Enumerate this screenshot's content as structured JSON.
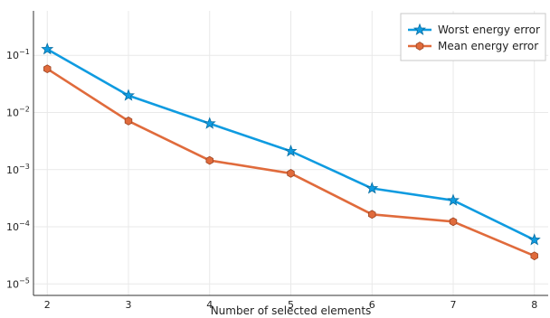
{
  "chart_data": {
    "type": "line",
    "xlabel": "Number of selected elements",
    "ylabel": "",
    "yscale": "log",
    "x": [
      2,
      3,
      4,
      5,
      6,
      7,
      8
    ],
    "xlim": [
      1.83,
      8.17
    ],
    "ylim": [
      6.3e-06,
      0.6
    ],
    "x_ticks": [
      2,
      3,
      4,
      5,
      6,
      7,
      8
    ],
    "y_ticks": [
      {
        "exp": -1,
        "base": "10",
        "sup": "−1"
      },
      {
        "exp": -2,
        "base": "10",
        "sup": "−2"
      },
      {
        "exp": -3,
        "base": "10",
        "sup": "−3"
      },
      {
        "exp": -4,
        "base": "10",
        "sup": "−4"
      },
      {
        "exp": -5,
        "base": "10",
        "sup": "−5"
      }
    ],
    "grid": true,
    "legend_position": "top-right",
    "series": [
      {
        "name": "Worst energy error",
        "color": "#0f9be0",
        "marker": "star",
        "values": [
          0.128,
          0.0198,
          0.0064,
          0.0021,
          0.00047,
          0.00029,
          5.9e-05
        ]
      },
      {
        "name": "Mean energy error",
        "color": "#e06b3c",
        "marker": "hexagon",
        "values": [
          0.058,
          0.0071,
          0.00145,
          0.00086,
          0.000165,
          0.000123,
          3.1e-05
        ]
      }
    ]
  }
}
